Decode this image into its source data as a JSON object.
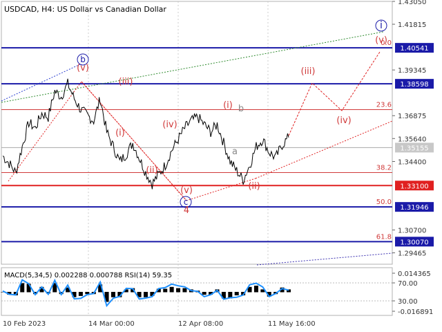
{
  "chart_data": {
    "type": "line",
    "title": "USDCAD, H4:  US Dollar vs Canadian Dollar",
    "price_axis": {
      "ylim": [
        1.2885,
        1.4305
      ],
      "ticks": [
        "1.43050",
        "1.41815",
        "1.40541",
        "1.39345",
        "1.38598",
        "1.36875",
        "1.35640",
        "1.35155",
        "1.34400",
        "1.33100",
        "1.31946",
        "1.30700",
        "1.30070",
        "1.29465"
      ]
    },
    "time_axis": {
      "labels": [
        "10 Feb 2023",
        "14 Mar 00:00",
        "12 Apr 08:00",
        "11 May 16:00"
      ]
    },
    "levels": [
      {
        "value": 1.40541,
        "label": "1.40541",
        "color": "#1a1aa8",
        "kind": "solid-blue",
        "fib": "0.0"
      },
      {
        "value": 1.38598,
        "label": "1.38598",
        "color": "#1a1aa8",
        "kind": "solid-blue"
      },
      {
        "value": 1.372,
        "label": "",
        "color": "#d03a3a",
        "kind": "thin-red",
        "fib": "23.6"
      },
      {
        "value": 1.3515,
        "label": "1.35155",
        "color": "#aaaaaa",
        "kind": "current"
      },
      {
        "value": 1.338,
        "label": "",
        "color": "#d03a3a",
        "kind": "thin-red",
        "fib": "38.2"
      },
      {
        "value": 1.331,
        "label": "1.33100",
        "color": "#e02020",
        "kind": "solid-red"
      },
      {
        "value": 1.31946,
        "label": "1.31946",
        "color": "#1a1aa8",
        "kind": "solid-blue",
        "fib": "50.0"
      },
      {
        "value": 1.3007,
        "label": "1.30070",
        "color": "#1a1aa8",
        "kind": "solid-blue",
        "fib": "61.8"
      }
    ],
    "wave_labels": [
      {
        "text": "i",
        "color": "#1a1aa8",
        "circled": true
      },
      {
        "text": "b",
        "color": "#1a1aa8",
        "circled": true
      },
      {
        "text": "c",
        "color": "#1a1aa8",
        "circled": true
      },
      {
        "text": "(v)",
        "color": "#d03a3a"
      },
      {
        "text": "(i)",
        "color": "#d03a3a"
      },
      {
        "text": "(ii)",
        "color": "#d03a3a"
      },
      {
        "text": "(iii)",
        "color": "#d03a3a"
      },
      {
        "text": "(iv)",
        "color": "#d03a3a"
      },
      {
        "text": "(i)",
        "color": "#d03a3a"
      },
      {
        "text": "(ii)",
        "color": "#d03a3a"
      },
      {
        "text": "(iii)",
        "color": "#d03a3a"
      },
      {
        "text": "(iv)",
        "color": "#d03a3a"
      },
      {
        "text": "(v)",
        "color": "#d03a3a"
      },
      {
        "text": "(i)",
        "color": "#d03a3a"
      },
      {
        "text": "(ii)",
        "color": "#d03a3a"
      },
      {
        "text": "(iii)",
        "color": "#d03a3a"
      },
      {
        "text": "(iv)",
        "color": "#d03a3a"
      },
      {
        "text": "(v)",
        "color": "#d03a3a"
      },
      {
        "text": "4",
        "color": "#d03a3a"
      },
      {
        "text": "a",
        "color": "#888888"
      },
      {
        "text": "b",
        "color": "#888888"
      }
    ],
    "price_series_sample": [
      1.347,
      1.343,
      1.338,
      1.352,
      1.365,
      1.362,
      1.37,
      1.368,
      1.382,
      1.379,
      1.386,
      1.378,
      1.372,
      1.369,
      1.366,
      1.378,
      1.36,
      1.352,
      1.344,
      1.348,
      1.354,
      1.346,
      1.338,
      1.332,
      1.337,
      1.342,
      1.35,
      1.356,
      1.362,
      1.366,
      1.368,
      1.364,
      1.36,
      1.364,
      1.354,
      1.344,
      1.339,
      1.334,
      1.342,
      1.352,
      1.356,
      1.349,
      1.346,
      1.353,
      1.357
    ],
    "indicator": {
      "label": "MACD(5,34,5) 0.002288 0.000788 RSI(14) 59.35",
      "ticks": [
        "0.014365",
        "70.00",
        "30.00",
        "-0.016891"
      ]
    },
    "colors": {
      "price": "#000000",
      "blue_level": "#1a1aa8",
      "red_level": "#e02020",
      "fib_line": "#d03a3a",
      "projection": "#e02020",
      "channel_green": "#2e8b2e",
      "channel_blue": "#2a3fd0",
      "macd_line": "#1e90ff"
    }
  }
}
